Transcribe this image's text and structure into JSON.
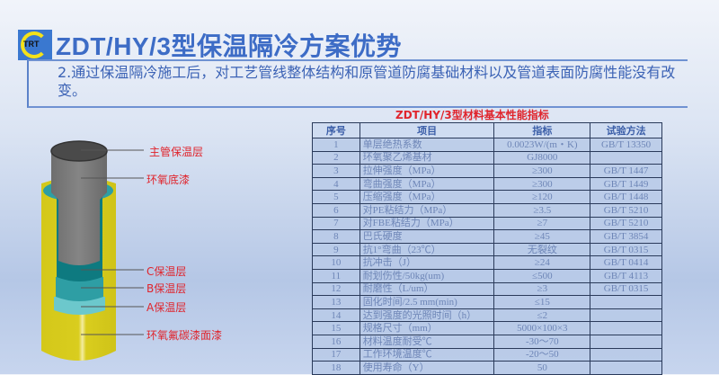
{
  "header": {
    "logo_text": "TRT",
    "title": "ZDT/HY/3型保温隔冷方案优势",
    "subtitle": "2.通过保温隔冷施工后，对工艺管线整体结构和原管道防腐基础材料以及管道表面防腐性能没有改变。"
  },
  "diagram": {
    "labels": [
      "主管保温层",
      "环氧底漆",
      "C保温层",
      "B保温层",
      "A保温层",
      "环氧氟碳漆面漆"
    ],
    "colors": {
      "pipe": "#7a7a7a",
      "outer": "#d9cd1e",
      "layer_c": "#0e7a80",
      "layer_b": "#2e9ea4",
      "layer_a": "#6cc8cc",
      "label": "#e0242c"
    }
  },
  "table": {
    "title": "ZDT/HY/3型材料基本性能指标",
    "headers": [
      "序号",
      "项目",
      "指标",
      "试验方法"
    ],
    "rows": [
      [
        "1",
        "单层绝热系数",
        "0.0023W/(m・K)",
        "GB/T 13350"
      ],
      [
        "2",
        "环氧聚乙烯基材",
        "GJ8000",
        ""
      ],
      [
        "3",
        "拉伸强度（MPa）",
        "≥300",
        "GB/T 1447"
      ],
      [
        "4",
        "弯曲强度（MPa）",
        "≥300",
        "GB/T 1449"
      ],
      [
        "5",
        "压缩强度（MPa）",
        "≥120",
        "GB/T 1448"
      ],
      [
        "6",
        "对PE粘结力（MPa）",
        "≥3.5",
        "GB/T 5210"
      ],
      [
        "7",
        "对FBE粘结力（MPa）",
        "≥7",
        "GB/T 5210"
      ],
      [
        "8",
        "巴氏硬度",
        "≥45",
        "GB/T 3854"
      ],
      [
        "9",
        "抗1°弯曲（23℃）",
        "无裂纹",
        "GB/T 0315"
      ],
      [
        "10",
        "抗冲击（J）",
        "≥24",
        "GB/T 0414"
      ],
      [
        "11",
        "耐划伤性/50kg(um)",
        "≤500",
        "GB/T 4113"
      ],
      [
        "12",
        "耐磨性（L/um）",
        "≥3",
        "GB/T 0315"
      ],
      [
        "13",
        "固化时间/2.5 mm(min)",
        "≤15",
        ""
      ],
      [
        "14",
        "达到强度的光照时间（h）",
        "≤2",
        ""
      ],
      [
        "15",
        "规格尺寸（mm）",
        "5000×100×3",
        ""
      ],
      [
        "16",
        "材料温度耐受℃",
        "-30～70",
        ""
      ],
      [
        "17",
        "工作环境温度℃",
        "-20～50",
        ""
      ],
      [
        "18",
        "使用寿命（Y）",
        "50",
        ""
      ]
    ]
  }
}
